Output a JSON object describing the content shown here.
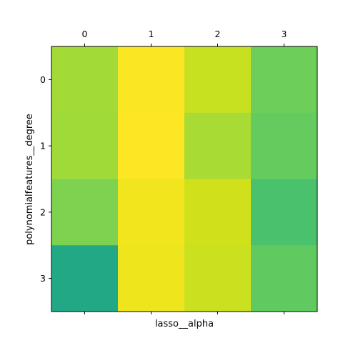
{
  "chart_data": {
    "type": "heatmap",
    "colormap": "viridis",
    "xlabel": "lasso__alpha",
    "ylabel": "polynomialfeatures__degree",
    "x_tick_labels": [
      "0",
      "1",
      "2",
      "3"
    ],
    "y_tick_labels": [
      "0",
      "1",
      "2",
      "3"
    ],
    "x_ticks_position": "top-and-bottom",
    "grid": false,
    "values": [
      [
        0.87,
        0.98,
        0.92,
        0.73
      ],
      [
        0.86,
        0.99,
        0.84,
        0.71
      ],
      [
        0.78,
        0.97,
        0.93,
        0.65
      ],
      [
        0.54,
        0.96,
        0.91,
        0.74
      ]
    ],
    "cell_colors": [
      [
        "#a2da37",
        "#fae622",
        "#c7e020",
        "#6dce59"
      ],
      [
        "#a0da39",
        "#fde725",
        "#a8db34",
        "#65cb5e"
      ],
      [
        "#7dd250",
        "#f1e51d",
        "#d0e11c",
        "#4ac16d"
      ],
      [
        "#22a884",
        "#efe51c",
        "#cae11f",
        "#60ca60"
      ]
    ]
  }
}
